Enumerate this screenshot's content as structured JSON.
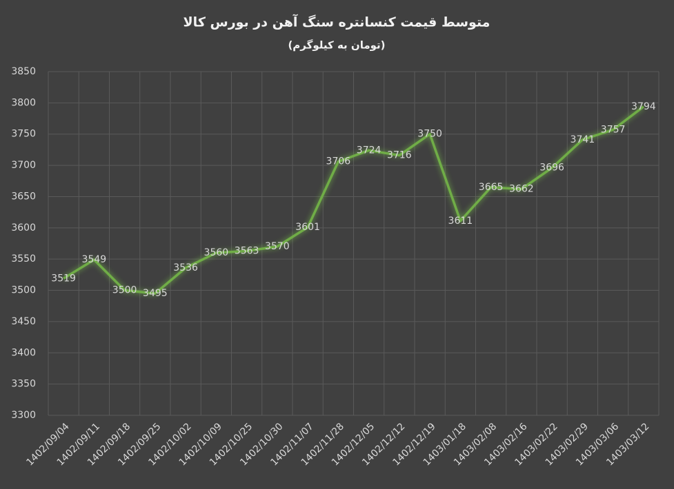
{
  "chart_data": {
    "type": "line",
    "title": "متوسط قیمت کنسانتره سنگ آهن در بورس کالا",
    "subtitle": "(تومان به کیلوگرم)",
    "categories": [
      "1402/09/04",
      "1402/09/11",
      "1402/09/18",
      "1402/09/25",
      "1402/10/02",
      "1402/10/09",
      "1402/10/25",
      "1402/10/30",
      "1402/11/07",
      "1402/11/28",
      "1402/12/05",
      "1402/12/12",
      "1402/12/19",
      "1403/01/18",
      "1403/02/08",
      "1403/02/16",
      "1403/02/22",
      "1403/02/29",
      "1403/03/06",
      "1403/03/12"
    ],
    "values": [
      3519,
      3549,
      3500,
      3495,
      3536,
      3560,
      3563,
      3570,
      3601,
      3706,
      3724,
      3716,
      3750,
      3611,
      3665,
      3662,
      3696,
      3741,
      3757,
      3794
    ],
    "color": "#70ad47",
    "ylim": [
      3300,
      3850
    ],
    "yticks": [
      3300,
      3350,
      3400,
      3450,
      3500,
      3550,
      3600,
      3650,
      3700,
      3750,
      3800,
      3850
    ],
    "grid": true
  }
}
